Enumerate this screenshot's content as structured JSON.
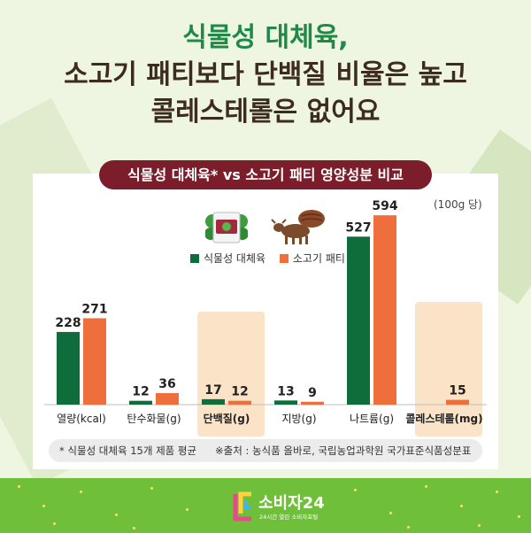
{
  "headline": {
    "line1": "식물성 대체육,",
    "line2": "소고기 패티보다 단백질 비율은 높고",
    "line3": "콜레스테롤은 없어요"
  },
  "colors": {
    "plant": "#0e6d3b",
    "beef": "#ef6f3c",
    "highlight": "#fbe3c8",
    "subtitle_bg": "#7b1d2b",
    "headline_green": "#1f8a47",
    "headline_brown": "#3d2b1f"
  },
  "icons": {
    "plant": "plant-based-patty-package-icon",
    "beef": "cow-with-beef-patty-icon"
  },
  "chart_data": {
    "type": "bar",
    "title": "식물성 대체육* vs 소고기 패티 영양성분 비교",
    "unit_note": "(100g 당)",
    "categories": [
      "열량(kcal)",
      "탄수화물(g)",
      "단백질(g)",
      "지방(g)",
      "나트륨(g)",
      "콜레스테롤(mg)"
    ],
    "highlighted_categories": [
      2,
      5
    ],
    "series": [
      {
        "name": "식물성 대체육",
        "values": [
          228,
          12,
          17,
          13,
          527,
          null
        ],
        "labels": [
          "228",
          "12",
          "17",
          "13",
          "527",
          ""
        ]
      },
      {
        "name": "소고기 패티",
        "values": [
          271,
          36,
          12,
          9,
          594,
          15
        ],
        "labels": [
          "271",
          "36",
          "12",
          "9",
          "594",
          "15"
        ]
      }
    ],
    "legend_position": "top-center"
  },
  "footnotes": {
    "note1": "* 식물성 대체육 15개 제품 평균",
    "note2": "※출처 : 농식품 올바로, 국립농업과학원 국가표준식품성분표"
  },
  "brand": {
    "name": "소비자24",
    "tagline": "24시간 열린 소비자포털"
  }
}
